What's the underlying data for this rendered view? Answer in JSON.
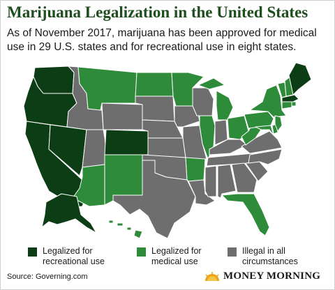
{
  "title": "Marijuana Legalization in the United States",
  "subtitle": "As of November 2017, marijuana has been approved for medical use in 29 U.S. states and for recreational use in eight states.",
  "colors": {
    "recreational": "#0c3d14",
    "medical": "#2e8b3a",
    "illegal": "#6e6e6e",
    "background": "#ffffff",
    "title": "#1e4d1e"
  },
  "legend": [
    {
      "label_line1": "Legalized for",
      "label_line2": "recreational use",
      "category": "recreational"
    },
    {
      "label_line1": "Legalized for",
      "label_line2": "medical use",
      "category": "medical"
    },
    {
      "label_line1": "Illegal in all",
      "label_line2": "circumstances",
      "category": "illegal"
    }
  ],
  "source": "Source: Governing.com",
  "logo_text": "MONEY MORNING",
  "states": {
    "WA": "recreational",
    "OR": "recreational",
    "CA": "recreational",
    "NV": "recreational",
    "CO": "recreational",
    "AK": "recreational",
    "MA": "recreational",
    "ME": "recreational",
    "MT": "medical",
    "ND": "medical",
    "MN": "medical",
    "AZ": "medical",
    "NM": "medical",
    "AR": "medical",
    "IL": "medical",
    "MI": "medical",
    "OH": "medical",
    "PA": "medical",
    "NY": "medical",
    "VT": "medical",
    "NH": "medical",
    "NJ": "medical",
    "DE": "medical",
    "MD": "medical",
    "WV": "medical",
    "FL": "medical",
    "HI": "medical",
    "RI": "medical",
    "CT": "medical",
    "ID": "illegal",
    "WY": "illegal",
    "UT": "illegal",
    "SD": "illegal",
    "NE": "illegal",
    "KS": "illegal",
    "OK": "illegal",
    "TX": "illegal",
    "IA": "illegal",
    "MO": "illegal",
    "LA": "illegal",
    "WI": "illegal",
    "IN": "illegal",
    "KY": "illegal",
    "TN": "illegal",
    "MS": "illegal",
    "AL": "illegal",
    "GA": "illegal",
    "SC": "illegal",
    "NC": "illegal",
    "VA": "illegal"
  }
}
